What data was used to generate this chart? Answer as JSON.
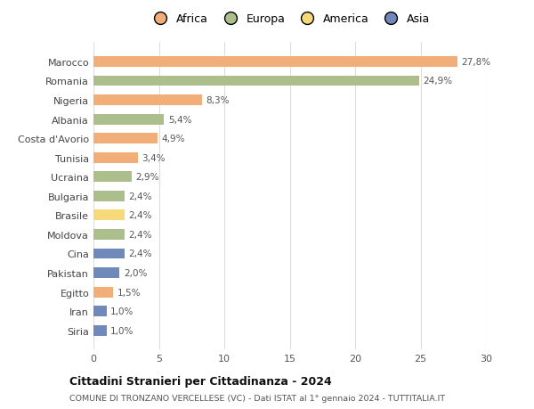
{
  "countries": [
    "Marocco",
    "Romania",
    "Nigeria",
    "Albania",
    "Costa d'Avorio",
    "Tunisia",
    "Ucraina",
    "Bulgaria",
    "Brasile",
    "Moldova",
    "Cina",
    "Pakistan",
    "Egitto",
    "Iran",
    "Siria"
  ],
  "values": [
    27.8,
    24.9,
    8.3,
    5.4,
    4.9,
    3.4,
    2.9,
    2.4,
    2.4,
    2.4,
    2.4,
    2.0,
    1.5,
    1.0,
    1.0
  ],
  "labels": [
    "27,8%",
    "24,9%",
    "8,3%",
    "5,4%",
    "4,9%",
    "3,4%",
    "2,9%",
    "2,4%",
    "2,4%",
    "2,4%",
    "2,4%",
    "2,0%",
    "1,5%",
    "1,0%",
    "1,0%"
  ],
  "colors": [
    "#F2AE79",
    "#ABBE8C",
    "#F2AE79",
    "#ABBE8C",
    "#F2AE79",
    "#F2AE79",
    "#ABBE8C",
    "#ABBE8C",
    "#F5D97A",
    "#ABBE8C",
    "#7089BB",
    "#7089BB",
    "#F2AE79",
    "#7089BB",
    "#7089BB"
  ],
  "legend": {
    "Africa": "#F2AE79",
    "Europa": "#ABBE8C",
    "America": "#F5D97A",
    "Asia": "#7089BB"
  },
  "title": "Cittadini Stranieri per Cittadinanza - 2024",
  "subtitle": "COMUNE DI TRONZANO VERCELLESE (VC) - Dati ISTAT al 1° gennaio 2024 - TUTTITALIA.IT",
  "xlim": [
    0,
    30
  ],
  "xticks": [
    0,
    5,
    10,
    15,
    20,
    25,
    30
  ],
  "background_color": "#ffffff",
  "grid_color": "#dddddd"
}
